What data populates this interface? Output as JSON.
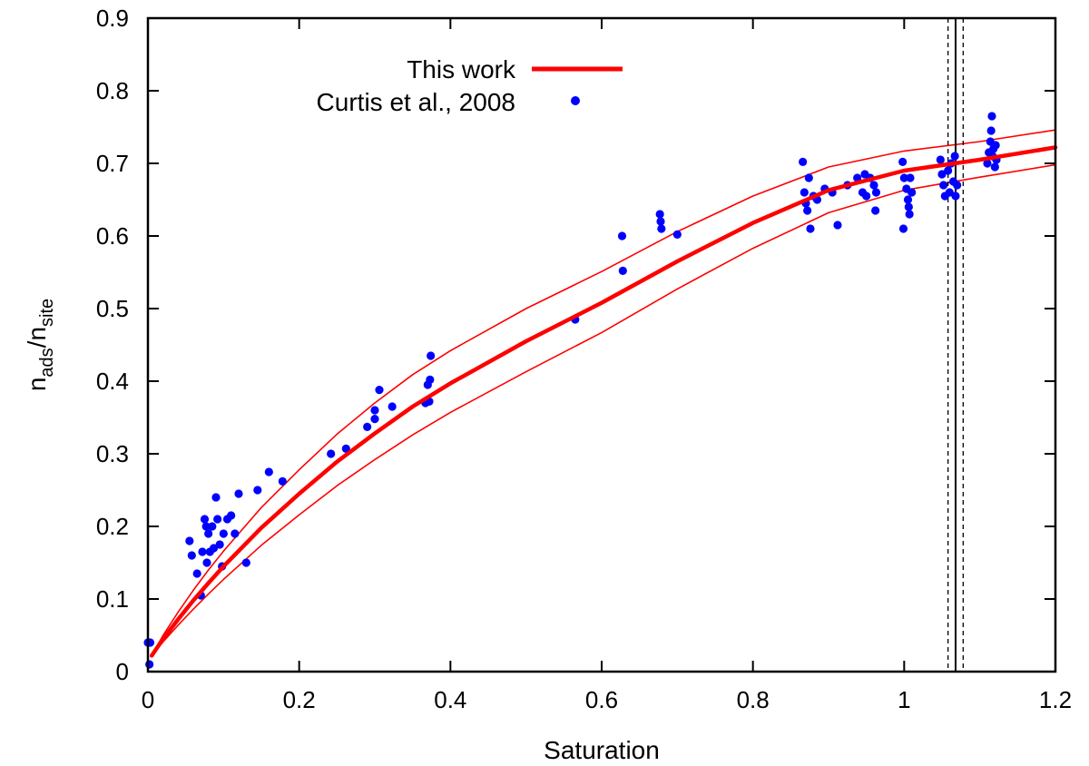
{
  "chart_data": {
    "type": "scatter",
    "xlabel": "Saturation",
    "ylabel": {
      "main1": "n",
      "sub1": "ads",
      "slash": "/n",
      "sub2": "site"
    },
    "xlim": [
      0,
      1.2
    ],
    "ylim": [
      0,
      0.9
    ],
    "xticks": [
      {
        "v": 0,
        "label": "0"
      },
      {
        "v": 0.2,
        "label": "0.2"
      },
      {
        "v": 0.4,
        "label": "0.4"
      },
      {
        "v": 0.6,
        "label": "0.6"
      },
      {
        "v": 0.8,
        "label": "0.8"
      },
      {
        "v": 1.0,
        "label": "1"
      },
      {
        "v": 1.2,
        "label": "1.2"
      }
    ],
    "yticks": [
      {
        "v": 0,
        "label": "0"
      },
      {
        "v": 0.1,
        "label": "0.1"
      },
      {
        "v": 0.2,
        "label": "0.2"
      },
      {
        "v": 0.3,
        "label": "0.3"
      },
      {
        "v": 0.4,
        "label": "0.4"
      },
      {
        "v": 0.5,
        "label": "0.5"
      },
      {
        "v": 0.6,
        "label": "0.6"
      },
      {
        "v": 0.7,
        "label": "0.7"
      },
      {
        "v": 0.8,
        "label": "0.8"
      },
      {
        "v": 0.9,
        "label": "0.9"
      }
    ],
    "grid": false,
    "legend_position": "top-center",
    "series": [
      {
        "name": "This work",
        "kind": "line",
        "color": "#ff0000",
        "x": [
          0.005,
          0.02,
          0.04,
          0.06,
          0.08,
          0.1,
          0.15,
          0.2,
          0.25,
          0.3,
          0.35,
          0.4,
          0.5,
          0.6,
          0.7,
          0.8,
          0.9,
          1.0,
          1.1,
          1.2
        ],
        "y": [
          0.022,
          0.045,
          0.072,
          0.098,
          0.122,
          0.145,
          0.198,
          0.245,
          0.289,
          0.328,
          0.365,
          0.397,
          0.455,
          0.508,
          0.565,
          0.618,
          0.663,
          0.69,
          0.705,
          0.722
        ]
      },
      {
        "kind": "band-upper",
        "color": "#ff0000",
        "x": [
          0.005,
          0.02,
          0.04,
          0.06,
          0.08,
          0.1,
          0.15,
          0.2,
          0.25,
          0.3,
          0.35,
          0.4,
          0.5,
          0.6,
          0.7,
          0.8,
          0.9,
          1.0,
          1.1,
          1.2
        ],
        "y": [
          0.022,
          0.05,
          0.082,
          0.112,
          0.14,
          0.166,
          0.226,
          0.278,
          0.327,
          0.37,
          0.409,
          0.442,
          0.5,
          0.551,
          0.606,
          0.655,
          0.695,
          0.717,
          0.73,
          0.746
        ]
      },
      {
        "kind": "band-lower",
        "color": "#ff0000",
        "x": [
          0.005,
          0.02,
          0.04,
          0.06,
          0.08,
          0.1,
          0.15,
          0.2,
          0.25,
          0.3,
          0.35,
          0.4,
          0.5,
          0.6,
          0.7,
          0.8,
          0.9,
          1.0,
          1.1,
          1.2
        ],
        "y": [
          0.022,
          0.041,
          0.064,
          0.086,
          0.107,
          0.127,
          0.174,
          0.216,
          0.256,
          0.292,
          0.326,
          0.357,
          0.413,
          0.467,
          0.527,
          0.583,
          0.632,
          0.663,
          0.681,
          0.698
        ]
      },
      {
        "name": "Curtis et al., 2008",
        "kind": "scatter",
        "color": "#0000ff",
        "points": [
          [
            0.0,
            0.04
          ],
          [
            0.002,
            0.01
          ],
          [
            0.003,
            0.04
          ],
          [
            0.055,
            0.18
          ],
          [
            0.058,
            0.16
          ],
          [
            0.065,
            0.135
          ],
          [
            0.07,
            0.105
          ],
          [
            0.072,
            0.165
          ],
          [
            0.075,
            0.21
          ],
          [
            0.077,
            0.2
          ],
          [
            0.078,
            0.15
          ],
          [
            0.08,
            0.19
          ],
          [
            0.082,
            0.165
          ],
          [
            0.085,
            0.2
          ],
          [
            0.087,
            0.17
          ],
          [
            0.09,
            0.24
          ],
          [
            0.092,
            0.21
          ],
          [
            0.095,
            0.175
          ],
          [
            0.098,
            0.145
          ],
          [
            0.1,
            0.19
          ],
          [
            0.105,
            0.21
          ],
          [
            0.11,
            0.215
          ],
          [
            0.115,
            0.19
          ],
          [
            0.12,
            0.245
          ],
          [
            0.13,
            0.15
          ],
          [
            0.145,
            0.25
          ],
          [
            0.16,
            0.275
          ],
          [
            0.178,
            0.262
          ],
          [
            0.242,
            0.3
          ],
          [
            0.262,
            0.307
          ],
          [
            0.29,
            0.337
          ],
          [
            0.3,
            0.348
          ],
          [
            0.3,
            0.36
          ],
          [
            0.306,
            0.388
          ],
          [
            0.323,
            0.365
          ],
          [
            0.367,
            0.37
          ],
          [
            0.37,
            0.395
          ],
          [
            0.372,
            0.372
          ],
          [
            0.373,
            0.402
          ],
          [
            0.374,
            0.435
          ],
          [
            0.565,
            0.485
          ],
          [
            0.627,
            0.6
          ],
          [
            0.628,
            0.552
          ],
          [
            0.677,
            0.63
          ],
          [
            0.678,
            0.62
          ],
          [
            0.679,
            0.61
          ],
          [
            0.7,
            0.602
          ],
          [
            0.866,
            0.702
          ],
          [
            0.868,
            0.66
          ],
          [
            0.87,
            0.645
          ],
          [
            0.872,
            0.635
          ],
          [
            0.874,
            0.68
          ],
          [
            0.876,
            0.61
          ],
          [
            0.88,
            0.655
          ],
          [
            0.885,
            0.65
          ],
          [
            0.895,
            0.665
          ],
          [
            0.905,
            0.66
          ],
          [
            0.912,
            0.615
          ],
          [
            0.925,
            0.67
          ],
          [
            0.938,
            0.68
          ],
          [
            0.945,
            0.66
          ],
          [
            0.948,
            0.685
          ],
          [
            0.95,
            0.655
          ],
          [
            0.955,
            0.68
          ],
          [
            0.96,
            0.67
          ],
          [
            0.962,
            0.635
          ],
          [
            0.963,
            0.66
          ],
          [
            0.998,
            0.702
          ],
          [
            0.999,
            0.61
          ],
          [
            1.0,
            0.68
          ],
          [
            1.003,
            0.665
          ],
          [
            1.005,
            0.65
          ],
          [
            1.006,
            0.64
          ],
          [
            1.007,
            0.63
          ],
          [
            1.008,
            0.68
          ],
          [
            1.01,
            0.66
          ],
          [
            1.048,
            0.705
          ],
          [
            1.05,
            0.685
          ],
          [
            1.052,
            0.67
          ],
          [
            1.054,
            0.655
          ],
          [
            1.058,
            0.69
          ],
          [
            1.06,
            0.66
          ],
          [
            1.062,
            0.7
          ],
          [
            1.065,
            0.675
          ],
          [
            1.067,
            0.71
          ],
          [
            1.068,
            0.655
          ],
          [
            1.07,
            0.67
          ],
          [
            1.11,
            0.7
          ],
          [
            1.112,
            0.715
          ],
          [
            1.114,
            0.73
          ],
          [
            1.115,
            0.745
          ],
          [
            1.116,
            0.765
          ],
          [
            1.117,
            0.71
          ],
          [
            1.118,
            0.72
          ],
          [
            1.12,
            0.695
          ],
          [
            1.121,
            0.725
          ],
          [
            1.122,
            0.705
          ]
        ]
      }
    ],
    "vertical_lines": [
      {
        "x": 1.068,
        "style": "solid"
      },
      {
        "x": 1.058,
        "style": "dashed"
      },
      {
        "x": 1.078,
        "style": "dashed"
      }
    ]
  }
}
